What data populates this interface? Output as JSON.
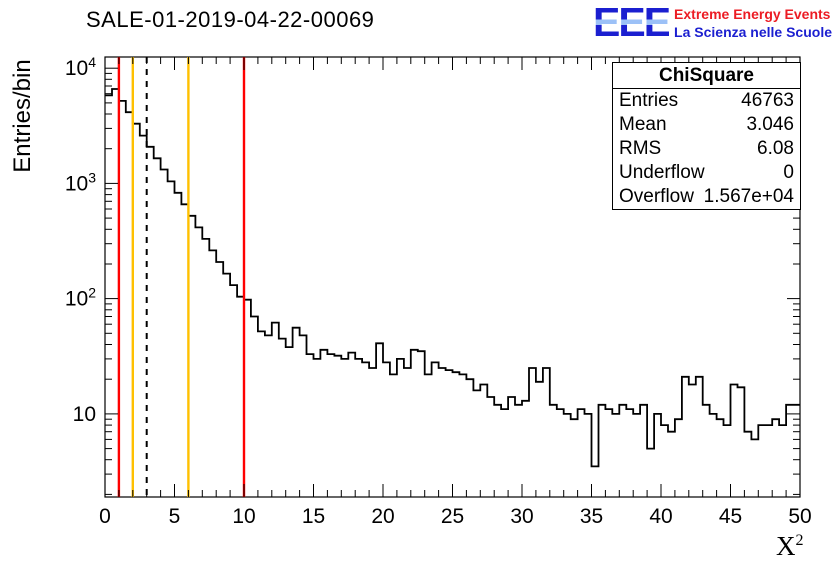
{
  "title": "SALE-01-2019-04-22-00069",
  "logo": {
    "acronym": "EEE",
    "line1": "Extreme Energy Events",
    "line2": "La Scienza nelle Scuole",
    "accent_red": "#ec1c24",
    "accent_blue": "#1b1fd0"
  },
  "stats": {
    "title": "ChiSquare",
    "rows": [
      {
        "label": "Entries",
        "value": "46763"
      },
      {
        "label": "Mean",
        "value": "3.046"
      },
      {
        "label": "RMS",
        "value": "6.08"
      },
      {
        "label": "Underflow",
        "value": "0"
      },
      {
        "label": "Overflow",
        "value": "1.567e+04"
      }
    ]
  },
  "chart_data": {
    "type": "bar",
    "style": "step-histogram",
    "title": "SALE-01-2019-04-22-00069",
    "xlabel": "X^2",
    "ylabel": "Entries/bin",
    "xlim": [
      0,
      50
    ],
    "ylim": [
      1.9,
      12500
    ],
    "ylog": true,
    "grid": false,
    "legend": "none",
    "bin_width": 0.5,
    "x_ticks": [
      0,
      5,
      10,
      15,
      20,
      25,
      30,
      35,
      40,
      45,
      50
    ],
    "x_minor_step": 1,
    "y_tick_exponents": [
      1,
      2,
      3,
      4
    ],
    "line_color": "#000000",
    "values": [
      5800,
      6600,
      5200,
      4150,
      3300,
      2600,
      2080,
      1650,
      1320,
      1040,
      829,
      659,
      523,
      415,
      330,
      262,
      208,
      165,
      131,
      104,
      98,
      70,
      52,
      48,
      62,
      45,
      38,
      56,
      48,
      33,
      30,
      36,
      33,
      32,
      30,
      34,
      30,
      28,
      25,
      41,
      28,
      22,
      30,
      25,
      36,
      35,
      22,
      28,
      25,
      24,
      23,
      22,
      20,
      16,
      18,
      14,
      12,
      11,
      14,
      12,
      13,
      25,
      19,
      25,
      12,
      11,
      10,
      9,
      11,
      10,
      3.5,
      12,
      11,
      10,
      12,
      11,
      10,
      12,
      5,
      10,
      8,
      7,
      9,
      21,
      18,
      21,
      12,
      10,
      9,
      8,
      18,
      17,
      7,
      6,
      8,
      8,
      9,
      8,
      12,
      12
    ],
    "vlines": [
      {
        "x": 1,
        "color": "#ff0000",
        "style": "solid"
      },
      {
        "x": 2,
        "color": "#ffc000",
        "style": "solid"
      },
      {
        "x": 3,
        "color": "#000000",
        "style": "dashed"
      },
      {
        "x": 6,
        "color": "#ffc000",
        "style": "solid"
      },
      {
        "x": 10,
        "color": "#ff0000",
        "style": "solid"
      }
    ]
  }
}
